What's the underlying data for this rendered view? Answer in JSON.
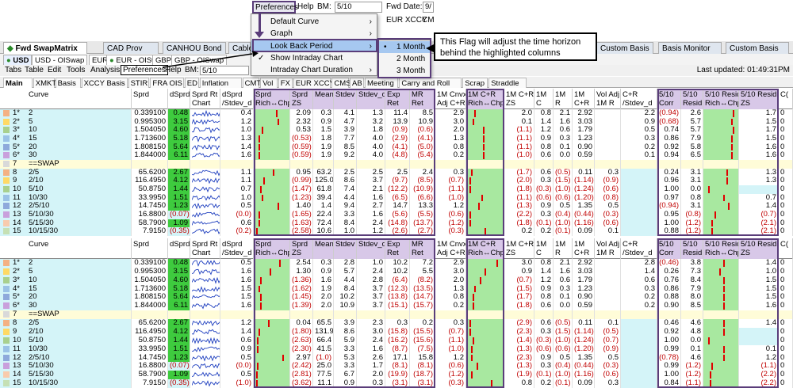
{
  "top_toolbar": {
    "preferences": "Preferences",
    "help": "Help",
    "bm_label": "BM:",
    "bm_value": "5/10",
    "fwd_date_label": "Fwd Date:",
    "fwd_date_value": "9/",
    "eur_xccy": "EUR XCCY",
    "cm": "CM"
  },
  "bg_strip": [
    "CAD Prov",
    "CANHOU Bond",
    "Cabl"
  ],
  "main_tabs": [
    {
      "label": "Fwd SwapMatrix",
      "active": true
    },
    {
      "label": "CAD Prov"
    },
    {
      "label": "CANHOU Bond"
    },
    {
      "label": "Cable"
    },
    {
      "label": "Custom Basis"
    },
    {
      "label": "Basis Monitor"
    },
    {
      "label": "Custom Basis"
    }
  ],
  "ccy_tabs": [
    {
      "label": "USD",
      "active": true
    },
    {
      "label": "USD - OISwap"
    },
    {
      "label": "EUR"
    },
    {
      "label": "EUR - OISwap"
    },
    {
      "label": "GBP"
    },
    {
      "label": "GBP - OISwap"
    }
  ],
  "menubar": {
    "items": [
      "Tabs",
      "Table",
      "Edit",
      "Tools",
      "Analysis",
      "Preferences",
      "Help"
    ],
    "bm_label": "BM:",
    "bm_value": "5/10",
    "last_updated": "Last updated: 01:49:31PM"
  },
  "sub_tabs": [
    "Main",
    "XMKT",
    "Basis",
    "XCCY Basis",
    "STIR",
    "FRA OIS",
    "ED",
    "Inflation",
    "CMT",
    "Vol",
    "FX",
    "EUR XCCY",
    "CMS",
    "AB",
    "Meeting",
    "Carry and Roll",
    "Scrap",
    "Straddle"
  ],
  "dropdown": {
    "items": [
      "Default Curve",
      "Graph",
      "Look Back Period",
      "Show Intraday Chart",
      "Intraday Chart Duration"
    ],
    "checked": "Show Intraday Chart",
    "selected": "Look Back Period"
  },
  "submenu": {
    "items": [
      "1 Month",
      "2 Month",
      "3 Month"
    ],
    "selected": "1 Month"
  },
  "callout": {
    "text": "This Flag will adjust the time horizon behind the highlighted columns"
  },
  "headers": {
    "curve": "Curve",
    "sprd": "Sprd",
    "dsprd": "dSprd",
    "sprd_rt": "Sprd Rt",
    "chart": "Chart",
    "dsprd_stdev": "dSprd",
    "dsprd_stdev2": "/Stdev_d",
    "sprd_rich": "Sprd",
    "sprd_rich2": "Rich↔Chp",
    "sprd_zs": "Sprd",
    "sprd_zs2": "ZS",
    "mean": "Mean",
    "stdev": "Stdev",
    "stdev_d": "Stdev_d",
    "exp_ret": "Exp",
    "exp_ret2": "Ret",
    "mr_ret": "MR",
    "mr_ret2": "Ret",
    "cnvx": "1M Cnvx",
    "cnvx2": "Adj C+R",
    "cr_rich": "1M C+R",
    "cr_rich2": "Rich↔Chp",
    "cr_zs": "1M C+R",
    "cr_zs2": "ZS",
    "c": "1M",
    "c2": "C",
    "r": "1M",
    "r2": "R",
    "cr": "1M",
    "cr2": "C+R",
    "voladj": "Vol Adj",
    "voladj2": "1M R",
    "crstd": "C+R",
    "crstd2": "/Stdev_d",
    "corr": "5/10",
    "corr2": "Corr",
    "resid": "5/10",
    "resid2": "Resid",
    "resid_rich": "5/10 Resid",
    "resid_rich2": "Rich↔Chp",
    "resid_zs": "5/10 Resid",
    "resid_zs2": "ZS",
    "c_last": "C("
  },
  "table1": [
    {
      "n": "1*",
      "curve": "2",
      "sprd": "0.339100",
      "dsprd": "0.48",
      "dsd": "0.4",
      "zs": "2.09",
      "mean": "0.3",
      "stdev": "4.1",
      "stdd": "1.3",
      "exp": "11.4",
      "mr": "8.5",
      "cnvx": "2.9",
      "crzs": "2.0",
      "c": "0.8",
      "r": "2.1",
      "cr": "2.92",
      "va": "",
      "crs": "2.2",
      "corr": "(0.94)",
      "resid": "2.6",
      "rzs": "1.7",
      "last": "0",
      "sw": "#f4b183",
      "dsg": true,
      "rich": 0.65,
      "crich": 0.2,
      "rrich": 0.9
    },
    {
      "n": "2*",
      "curve": "5",
      "sprd": "0.995300",
      "dsprd": "3.15",
      "dsd": "1.2",
      "zs": "2.32",
      "mean": "0.9",
      "stdev": "4.7",
      "stdd": "3.2",
      "exp": "13.9",
      "mr": "10.9",
      "cnvx": "3.0",
      "crzs": "0.1",
      "c": "1.4",
      "r": "1.6",
      "cr": "3.03",
      "va": "",
      "crs": "0.9",
      "corr": "(0.68)",
      "resid": "5.7",
      "rzs": "1.5",
      "last": "0",
      "sw": "#ffd966",
      "dsg": true,
      "rich": 0.7,
      "crich": 0.15,
      "rrich": 0.85
    },
    {
      "n": "3*",
      "curve": "10",
      "sprd": "1.504050",
      "dsprd": "4.60",
      "dsd": "1.0",
      "zs": "0.53",
      "mean": "1.5",
      "stdev": "3.9",
      "stdd": "1.8",
      "exp": "(0.9)",
      "mr": "(0.6)",
      "cnvx": "2.0",
      "crzs": "(1.1)",
      "c": "1.2",
      "r": "0.6",
      "cr": "1.79",
      "va": "",
      "crs": "0.5",
      "corr": "0.74",
      "resid": "5.7",
      "rzs": "1.7",
      "last": "0",
      "sw": "#a9d08e",
      "dsg": true,
      "rich": 0.2,
      "crich": 0.45,
      "rrich": 0.9
    },
    {
      "n": "4*",
      "curve": "15",
      "sprd": "1.713600",
      "dsprd": "5.18",
      "dsd": "1.3",
      "zs": "(0.53)",
      "mean": "1.8",
      "stdev": "7.7",
      "stdd": "4.0",
      "exp": "(2.9)",
      "mr": "(4.1)",
      "cnvx": "1.3",
      "crzs": "(1.1)",
      "c": "0.9",
      "r": "0.3",
      "cr": "1.23",
      "va": "",
      "crs": "0.3",
      "corr": "0.86",
      "resid": "7.9",
      "rzs": "1.5",
      "last": "0",
      "sw": "#9bc2e6",
      "dsg": true,
      "rich": 0.1,
      "crich": 0.45,
      "rrich": 0.85
    },
    {
      "n": "5*",
      "curve": "20",
      "sprd": "1.808150",
      "dsprd": "5.64",
      "dsd": "1.4",
      "zs": "(0.59)",
      "mean": "1.9",
      "stdev": "8.5",
      "stdd": "4.0",
      "exp": "(4.1)",
      "mr": "(5.0)",
      "cnvx": "0.8",
      "crzs": "(1.1)",
      "c": "0.8",
      "r": "0.1",
      "cr": "0.90",
      "va": "",
      "crs": "0.2",
      "corr": "0.92",
      "resid": "5.8",
      "rzs": "1.6",
      "last": "0",
      "sw": "#8ea9db",
      "dsg": true,
      "rich": 0.1,
      "crich": 0.45,
      "rrich": 0.85
    },
    {
      "n": "6*",
      "curve": "30",
      "sprd": "1.844000",
      "dsprd": "6.11",
      "dsd": "1.6",
      "zs": "(0.59)",
      "mean": "1.9",
      "stdev": "9.2",
      "stdd": "4.0",
      "exp": "(4.8)",
      "mr": "(5.4)",
      "cnvx": "0.2",
      "crzs": "(1.0)",
      "c": "0.6",
      "r": "0.0",
      "cr": "0.59",
      "va": "",
      "crs": "0.1",
      "corr": "0.94",
      "resid": "6.5",
      "rzs": "1.6",
      "last": "0",
      "sw": "#c9a0dc",
      "dsg": true,
      "rich": 0.1,
      "crich": 0.45,
      "rrich": 0.85
    },
    {
      "n": "7",
      "curve": "==SWAP",
      "sep": true,
      "sw": "#d9d9d9"
    },
    {
      "n": "8",
      "curve": "2/5",
      "sprd": "65.6200",
      "dsprd": "2.67",
      "dsd": "1.1",
      "zs": "0.95",
      "mean": "63.2",
      "stdev": "2.5",
      "stdd": "2.5",
      "exp": "2.5",
      "mr": "2.4",
      "cnvx": "0.3",
      "crzs": "(1.7)",
      "c": "0.6",
      "r": "(0.5)",
      "cr": "0.11",
      "va": "0.3",
      "crs": "",
      "corr": "0.24",
      "resid": "3.1",
      "rzs": "1.3",
      "last": "0",
      "sw": "#f4b183",
      "dsg": true,
      "rich": 0.55,
      "crich": 0.1,
      "rrich": 0.7
    },
    {
      "n": "9",
      "curve": "2/10",
      "sprd": "116.4950",
      "dsprd": "4.12",
      "dsd": "1.1",
      "zs": "(0.99)",
      "mean": "125.0",
      "stdev": "8.6",
      "stdd": "3.7",
      "exp": "(9.7)",
      "mr": "(8.5)",
      "cnvx": "(0.7)",
      "crzs": "(2.0)",
      "c": "0.3",
      "r": "(1.5)",
      "cr": "(1.14)",
      "va": "(0.9)",
      "crs": "",
      "corr": "0.96",
      "resid": "3.1",
      "rzs": "1.3",
      "last": "0",
      "sw": "#ffd966",
      "dsg": true,
      "rich": 0.25,
      "crich": 0.05,
      "rrich": 0.7
    },
    {
      "n": "10",
      "curve": "5/10",
      "sprd": "50.8750",
      "dsprd": "1.44",
      "dsd": "0.7",
      "zs": "(1.47)",
      "mean": "61.8",
      "stdev": "7.4",
      "stdd": "2.1",
      "exp": "(12.2)",
      "mr": "(10.9)",
      "cnvx": "(1.1)",
      "crzs": "(1.8)",
      "c": "(0.3)",
      "r": "(1.0)",
      "cr": "(1.24)",
      "va": "(0.6)",
      "crs": "",
      "corr": "1.00",
      "resid": "0.0",
      "rzs": "",
      "last": "0",
      "sw": "#a9d08e",
      "dsg": true,
      "rich": 0.15,
      "crich": 0.05,
      "rrich": 0.1
    },
    {
      "n": "11",
      "curve": "10/30",
      "sprd": "33.9950",
      "dsprd": "1.51",
      "dsd": "1.0",
      "zs": "(1.23)",
      "mean": "39.4",
      "stdev": "4.4",
      "stdd": "1.6",
      "exp": "(6.5)",
      "mr": "(6.6)",
      "cnvx": "(1.0)",
      "crzs": "(1.1)",
      "c": "(0.6)",
      "r": "(0.6)",
      "cr": "(1.20)",
      "va": "(0.8)",
      "crs": "",
      "corr": "0.97",
      "resid": "0.8",
      "rzs": "0.7",
      "last": "0",
      "sw": "#9bc2e6",
      "dsg": true,
      "rich": 0.2,
      "crich": 0.4,
      "rrich": 0.6
    },
    {
      "n": "12",
      "curve": "2/5/10",
      "sprd": "14.7450",
      "dsprd": "1.23",
      "dsd": "0.5",
      "zs": "1.40",
      "mean": "1.4",
      "stdev": "9.4",
      "stdd": "2.7",
      "exp": "14.7",
      "mr": "13.3",
      "cnvx": "1.2",
      "crzs": "(1.3)",
      "c": "0.9",
      "r": "0.5",
      "cr": "1.35",
      "va": "0.5",
      "crs": "",
      "corr": "(0.94)",
      "resid": "3.1",
      "rzs": "1.4",
      "last": "0",
      "sw": "#8ea9db",
      "dsg": true,
      "rich": 0.7,
      "crich": 0.3,
      "rrich": 0.75
    },
    {
      "n": "13",
      "curve": "5/10/30",
      "sprd": "16.8800",
      "dsprd": "(0.07)",
      "dsd": "(0.0)",
      "zs": "(1.65)",
      "mean": "22.4",
      "stdev": "3.3",
      "stdd": "1.6",
      "exp": "(5.6)",
      "mr": "(5.5)",
      "cnvx": "(0.6)",
      "crzs": "(2.2)",
      "c": "0.3",
      "r": "(0.4)",
      "cr": "(0.44)",
      "va": "(0.3)",
      "crs": "",
      "corr": "0.95",
      "resid": "(0.8)",
      "rzs": "(0.7)",
      "last": "0",
      "sw": "#c9a0dc",
      "dsg": false,
      "rich": 0.1,
      "crich": 0.05,
      "rrich": 0.3
    },
    {
      "n": "14",
      "curve": "5/15/30",
      "sprd": "58.7900",
      "dsprd": "1.09",
      "dsd": "0.6",
      "zs": "(1.63)",
      "mean": "72.4",
      "stdev": "8.4",
      "stdd": "2.4",
      "exp": "(14.8)",
      "mr": "(13.7)",
      "cnvx": "(1.2)",
      "crzs": "(1.8)",
      "c": "(0.1)",
      "r": "(1.0)",
      "cr": "(1.16)",
      "va": "(0.6)",
      "crs": "",
      "corr": "1.00",
      "resid": "(1.2)",
      "rzs": "(2.1)",
      "last": "0",
      "sw": "#f8cbad",
      "dsg": true,
      "rich": 0.1,
      "crich": 0.05,
      "rrich": 0.2
    },
    {
      "n": "15",
      "curve": "10/15/30",
      "sprd": "7.9150",
      "dsprd": "(0.35)",
      "dsd": "(0.2)",
      "zs": "(2.58)",
      "mean": "10.6",
      "stdev": "1.0",
      "stdd": "1.2",
      "exp": "(2.6)",
      "mr": "(2.7)",
      "cnvx": "(0.3)",
      "crzs": "0.2",
      "c": "0.2",
      "r": "(0.1)",
      "cr": "0.09",
      "va": "0.1",
      "crs": "",
      "corr": "0.88",
      "resid": "(1.2)",
      "rzs": "(2.1)",
      "last": "0",
      "sw": "#c6e0b4",
      "dsg": false,
      "rich": 0.03,
      "crich": 0.5,
      "rrich": 0.2
    }
  ],
  "table2": [
    {
      "n": "1*",
      "curve": "2",
      "sprd": "0.339100",
      "dsprd": "0.48",
      "dsd": "0.5",
      "zs": "2.54",
      "mean": "0.3",
      "stdev": "2.8",
      "stdd": "1.0",
      "exp": "10.2",
      "mr": "7.2",
      "cnvx": "2.9",
      "crzs": "3.0",
      "c": "0.8",
      "r": "2.1",
      "cr": "2.92",
      "va": "",
      "crs": "2.8",
      "corr": "(0.46)",
      "resid": "3.8",
      "rzs": "1.4",
      "last": "0",
      "sw": "#f4b183",
      "dsg": true,
      "rich": 0.75,
      "crich": 0.85,
      "rrich": 0.6
    },
    {
      "n": "2*",
      "curve": "5",
      "sprd": "0.995300",
      "dsprd": "3.15",
      "dsd": "1.6",
      "zs": "1.30",
      "mean": "0.9",
      "stdev": "5.7",
      "stdd": "2.4",
      "exp": "10.2",
      "mr": "5.5",
      "cnvx": "3.0",
      "crzs": "0.9",
      "c": "1.4",
      "r": "1.6",
      "cr": "3.03",
      "va": "",
      "crs": "1.4",
      "corr": "0.26",
      "resid": "7.3",
      "rzs": "1.0",
      "last": "0",
      "sw": "#ffd966",
      "dsg": true,
      "rich": 0.45,
      "crich": 0.5,
      "rrich": 0.45
    },
    {
      "n": "3*",
      "curve": "10",
      "sprd": "1.504050",
      "dsprd": "4.60",
      "dsd": "1.6",
      "zs": "(1.36)",
      "mean": "1.6",
      "stdev": "4.4",
      "stdd": "2.8",
      "exp": "(6.4)",
      "mr": "(8.2)",
      "cnvx": "2.0",
      "crzs": "(0.7)",
      "c": "1.2",
      "r": "0.6",
      "cr": "1.79",
      "va": "",
      "crs": "0.6",
      "corr": "0.76",
      "resid": "8.4",
      "rzs": "1.5",
      "last": "0",
      "sw": "#a9d08e",
      "dsg": true,
      "rich": 0.15,
      "crich": 0.35,
      "rrich": 0.6
    },
    {
      "n": "4*",
      "curve": "15",
      "sprd": "1.713600",
      "dsprd": "5.18",
      "dsd": "1.5",
      "zs": "(1.62)",
      "mean": "1.9",
      "stdev": "8.4",
      "stdd": "3.7",
      "exp": "(12.3)",
      "mr": "(13.5)",
      "cnvx": "1.3",
      "crzs": "(1.5)",
      "c": "0.9",
      "r": "0.3",
      "cr": "1.23",
      "va": "",
      "crs": "0.3",
      "corr": "0.86",
      "resid": "7.9",
      "rzs": "1.5",
      "last": "0",
      "sw": "#9bc2e6",
      "dsg": true,
      "rich": 0.1,
      "crich": 0.2,
      "rrich": 0.6
    },
    {
      "n": "5*",
      "curve": "20",
      "sprd": "1.808150",
      "dsprd": "5.64",
      "dsd": "1.5",
      "zs": "(1.45)",
      "mean": "2.0",
      "stdev": "10.2",
      "stdd": "3.7",
      "exp": "(13.8)",
      "mr": "(14.7)",
      "cnvx": "0.8",
      "crzs": "(1.7)",
      "c": "0.8",
      "r": "0.1",
      "cr": "0.90",
      "va": "",
      "crs": "0.2",
      "corr": "0.88",
      "resid": "8.0",
      "rzs": "1.5",
      "last": "0",
      "sw": "#8ea9db",
      "dsg": true,
      "rich": 0.15,
      "crich": 0.15,
      "rrich": 0.6
    },
    {
      "n": "6*",
      "curve": "30",
      "sprd": "1.844000",
      "dsprd": "6.11",
      "dsd": "1.6",
      "zs": "(1.39)",
      "mean": "2.0",
      "stdev": "10.9",
      "stdd": "3.7",
      "exp": "(15.1)",
      "mr": "(15.7)",
      "cnvx": "0.2",
      "crzs": "(1.8)",
      "c": "0.6",
      "r": "0.0",
      "cr": "0.59",
      "va": "",
      "crs": "0.2",
      "corr": "0.90",
      "resid": "8.5",
      "rzs": "1.6",
      "last": "0",
      "sw": "#c9a0dc",
      "dsg": true,
      "rich": 0.15,
      "crich": 0.15,
      "rrich": 0.6
    },
    {
      "n": "7",
      "curve": "==SWAP",
      "sep": true,
      "sw": "#d9d9d9"
    },
    {
      "n": "8",
      "curve": "2/5",
      "sprd": "65.6200",
      "dsprd": "2.67",
      "dsd": "1.2",
      "zs": "0.04",
      "mean": "65.5",
      "stdev": "3.9",
      "stdd": "2.3",
      "exp": "0.3",
      "mr": "0.2",
      "cnvx": "0.3",
      "crzs": "(2.9)",
      "c": "0.6",
      "r": "(0.5)",
      "cr": "0.11",
      "va": "0.1",
      "crs": "",
      "corr": "0.46",
      "resid": "4.6",
      "rzs": "1.4",
      "last": "0",
      "sw": "#f4b183",
      "dsg": true,
      "rich": 0.4,
      "crich": 0.05,
      "rrich": 0.6
    },
    {
      "n": "9",
      "curve": "2/10",
      "sprd": "116.4950",
      "dsprd": "4.12",
      "dsd": "1.4",
      "zs": "(1.80)",
      "mean": "131.9",
      "stdev": "8.6",
      "stdd": "3.0",
      "exp": "(15.8)",
      "mr": "(15.5)",
      "cnvx": "(0.7)",
      "crzs": "(2.3)",
      "c": "0.3",
      "r": "(1.5)",
      "cr": "(1.14)",
      "va": "(0.5)",
      "crs": "",
      "corr": "0.92",
      "resid": "4.8",
      "rzs": "",
      "last": "0",
      "sw": "#ffd966",
      "dsg": true,
      "rich": 0.1,
      "crich": 0.05,
      "rrich": 0.6
    },
    {
      "n": "10",
      "curve": "5/10",
      "sprd": "50.8750",
      "dsprd": "1.44",
      "dsd": "0.6",
      "zs": "(2.63)",
      "mean": "66.4",
      "stdev": "5.9",
      "stdd": "2.4",
      "exp": "(16.2)",
      "mr": "(15.6)",
      "cnvx": "(1.1)",
      "crzs": "(1.4)",
      "c": "(0.3)",
      "r": "(1.0)",
      "cr": "(1.24)",
      "va": "(0.7)",
      "crs": "",
      "corr": "1.00",
      "resid": "0.0",
      "rzs": "",
      "last": "0",
      "sw": "#a9d08e",
      "dsg": true,
      "rich": 0.05,
      "crich": 0.15,
      "rrich": 0.1
    },
    {
      "n": "11",
      "curve": "10/30",
      "sprd": "33.9950",
      "dsprd": "1.51",
      "dsd": "0.9",
      "zs": "(2.30)",
      "mean": "41.5",
      "stdev": "3.3",
      "stdd": "1.6",
      "exp": "(8.7)",
      "mr": "(7.5)",
      "cnvx": "(1.0)",
      "crzs": "(1.3)",
      "c": "(0.6)",
      "r": "(0.6)",
      "cr": "(1.20)",
      "va": "(0.9)",
      "crs": "",
      "corr": "0.99",
      "resid": "0.1",
      "rzs": "0.1",
      "last": "0",
      "sw": "#9bc2e6",
      "dsg": true,
      "rich": 0.05,
      "crich": 0.1,
      "rrich": 0.6
    },
    {
      "n": "12",
      "curve": "2/5/10",
      "sprd": "14.7450",
      "dsprd": "1.23",
      "dsd": "0.5",
      "zs": "2.97",
      "mean": "(1.0)",
      "stdev": "5.3",
      "stdd": "2.6",
      "exp": "17.1",
      "mr": "15.8",
      "cnvx": "1.2",
      "crzs": "(2.3)",
      "c": "0.9",
      "r": "0.5",
      "cr": "1.35",
      "va": "0.5",
      "crs": "",
      "corr": "(0.78)",
      "resid": "4.6",
      "rzs": "1.2",
      "last": "0",
      "sw": "#8ea9db",
      "dsg": true,
      "rich": 0.85,
      "crich": 0.1,
      "rrich": 0.6
    },
    {
      "n": "13",
      "curve": "5/10/30",
      "sprd": "16.8800",
      "dsprd": "(0.07)",
      "dsd": "(0.0)",
      "zs": "(2.42)",
      "mean": "25.0",
      "stdev": "3.3",
      "stdd": "1.7",
      "exp": "(8.1)",
      "mr": "(8.1)",
      "cnvx": "(0.6)",
      "crzs": "(1.3)",
      "c": "0.3",
      "r": "(0.4)",
      "cr": "(0.44)",
      "va": "(0.3)",
      "crs": "",
      "corr": "0.99",
      "resid": "(1.2)",
      "rzs": "(1.1)",
      "last": "0",
      "sw": "#c9a0dc",
      "dsg": false,
      "rich": 0.05,
      "crich": 0.25,
      "rrich": 0.2
    },
    {
      "n": "14",
      "curve": "5/15/30",
      "sprd": "58.7900",
      "dsprd": "1.09",
      "dsd": "0.5",
      "zs": "(2.81)",
      "mean": "77.5",
      "stdev": "6.7",
      "stdd": "2.0",
      "exp": "(19.9)",
      "mr": "(18.7)",
      "cnvx": "(1.2)",
      "crzs": "(1.9)",
      "c": "(0.1)",
      "r": "(1.0)",
      "cr": "(1.16)",
      "va": "(0.6)",
      "crs": "",
      "corr": "1.00",
      "resid": "(1.2)",
      "rzs": "(2.2)",
      "last": "0",
      "sw": "#f8cbad",
      "dsg": true,
      "rich": 0.03,
      "crich": 0.1,
      "rrich": 0.15
    },
    {
      "n": "15",
      "curve": "10/15/30",
      "sprd": "7.9150",
      "dsprd": "(0.35)",
      "dsd": "(1.0)",
      "zs": "(3.62)",
      "mean": "11.1",
      "stdev": "0.9",
      "stdd": "0.3",
      "exp": "(3.1)",
      "mr": "(3.1)",
      "cnvx": "(0.3)",
      "crzs": "0.8",
      "c": "0.2",
      "r": "(0.1)",
      "cr": "0.09",
      "va": "0.3",
      "crs": "",
      "corr": "0.84",
      "resid": "(1.1)",
      "rzs": "(2.2)",
      "last": "0",
      "sw": "#c6e0b4",
      "dsg": false,
      "rich": 0.02,
      "crich": 0.7,
      "rrich": 0.15
    }
  ]
}
